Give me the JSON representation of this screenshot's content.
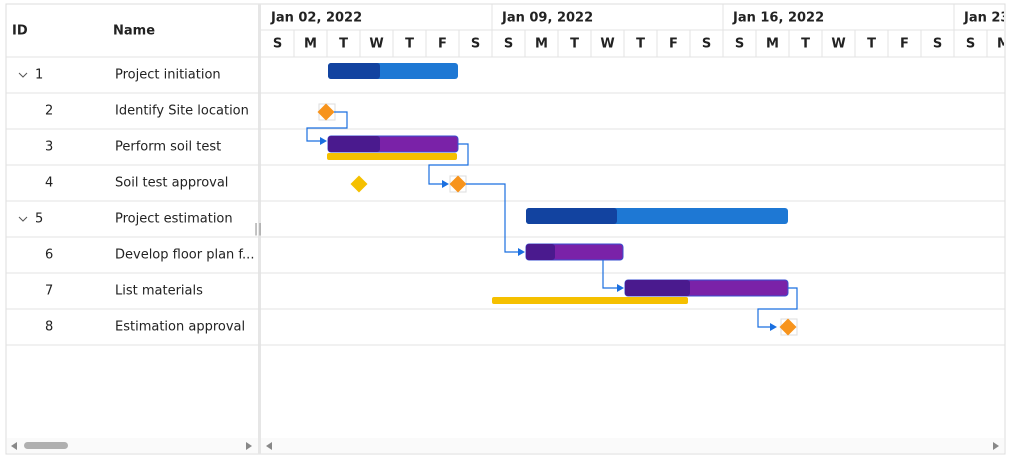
{
  "grid": {
    "columns": [
      "ID",
      "Name"
    ],
    "rows": [
      {
        "id": 1,
        "name": "Project initiation"
      },
      {
        "id": 2,
        "name": "Identify Site location"
      },
      {
        "id": 3,
        "name": "Perform soil test"
      },
      {
        "id": 4,
        "name": "Soil test approval"
      },
      {
        "id": 5,
        "name": "Project estimation"
      },
      {
        "id": 6,
        "name": "Develop floor plan f..."
      },
      {
        "id": 7,
        "name": "List materials"
      },
      {
        "id": 8,
        "name": "Estimation approval"
      }
    ]
  },
  "timeline": {
    "weeks": [
      "Jan 02, 2022",
      "Jan 09, 2022",
      "Jan 16, 2022",
      "Jan 23"
    ],
    "days": [
      "S",
      "M",
      "T",
      "W",
      "T",
      "F",
      "S",
      "S",
      "M",
      "T",
      "W",
      "T",
      "F",
      "S",
      "S",
      "M",
      "T",
      "W",
      "T",
      "F",
      "S",
      "S",
      "M"
    ]
  }
}
